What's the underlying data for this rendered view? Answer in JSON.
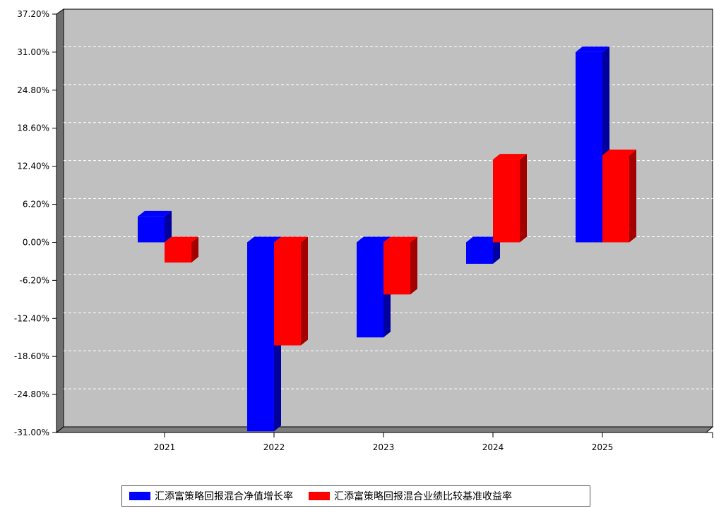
{
  "chart_data": {
    "type": "bar",
    "categories": [
      "2021",
      "2022",
      "2023",
      "2024",
      "2025"
    ],
    "series": [
      {
        "name": "汇添富策略回报混合净值增长率",
        "color": "#0000ff",
        "side_color": "#00009e",
        "values": [
          4.2,
          -30.8,
          -15.5,
          -3.5,
          31.0
        ]
      },
      {
        "name": "汇添富策略回报混合业绩比较基准收益率",
        "color": "#ff0000",
        "side_color": "#a50000",
        "values": [
          -3.3,
          -16.8,
          -8.5,
          13.5,
          14.2
        ]
      }
    ],
    "yticks": [
      "37.20%",
      "31.00%",
      "24.80%",
      "18.60%",
      "12.40%",
      "6.20%",
      "0.00%",
      "-6.20%",
      "-12.40%",
      "-18.60%",
      "-24.80%",
      "-31.00%"
    ],
    "ylim": [
      -31.0,
      37.2
    ],
    "grid": true,
    "legend_position": "bottom",
    "plot_background": "#c0c0c0"
  }
}
